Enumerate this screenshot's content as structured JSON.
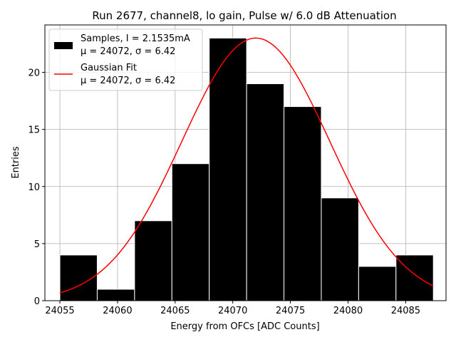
{
  "chart_data": {
    "type": "bar",
    "title": "Run 2677, channel8, lo gain, Pulse w/ 6.0 dB Attenuation",
    "xlabel": "Energy from OFCs [ADC Counts]",
    "ylabel": "Entries",
    "xlim": [
      24053.7,
      24088.5
    ],
    "ylim": [
      0,
      24.15
    ],
    "xticks": [
      24055,
      24060,
      24065,
      24070,
      24075,
      24080,
      24085
    ],
    "yticks": [
      0,
      5,
      10,
      15,
      20
    ],
    "grid": true,
    "histogram": {
      "bin_edges": [
        24055.0,
        24058.24,
        24061.48,
        24064.72,
        24067.96,
        24071.2,
        24074.44,
        24077.68,
        24080.92,
        24084.16,
        24087.4
      ],
      "counts": [
        4,
        1,
        7,
        12,
        23,
        19,
        17,
        9,
        3,
        4
      ],
      "color": "#000000",
      "edgecolor": "#ffffff"
    },
    "fit": {
      "type": "gaussian",
      "mu": 24072,
      "sigma": 6.42,
      "amplitude": 23,
      "x_range": [
        24055,
        24087.4
      ],
      "color": "#ff0000"
    },
    "legend": {
      "placement": "top-left",
      "entries": [
        {
          "line1": "Samples, I = 2.1535mA",
          "line2": "μ = 24072, σ = 6.42",
          "swatch": "box",
          "color": "#000000"
        },
        {
          "line1": "Gaussian Fit",
          "line2": "μ = 24072, σ = 6.42",
          "swatch": "line",
          "color": "#ff0000"
        }
      ]
    }
  }
}
